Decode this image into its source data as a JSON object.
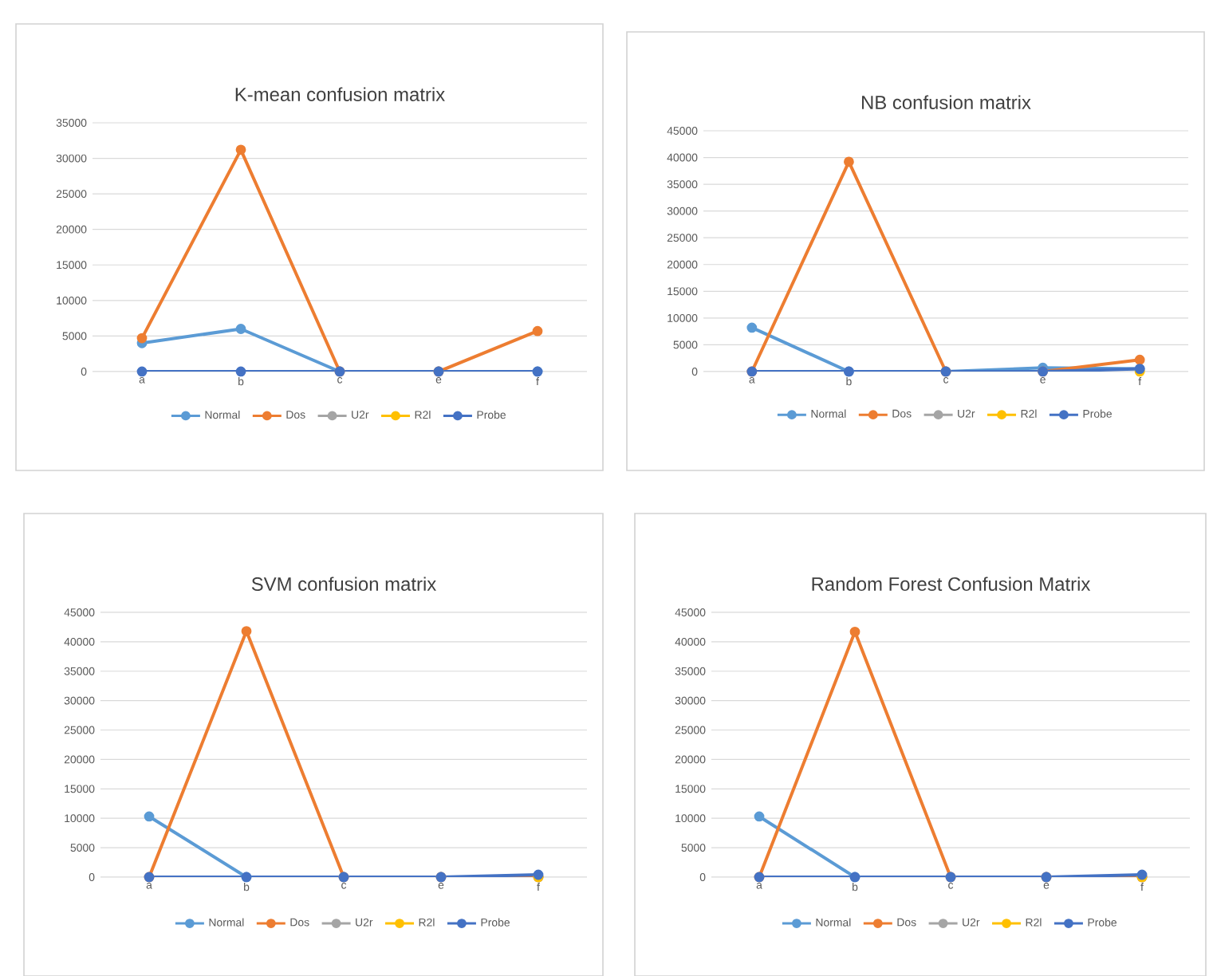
{
  "chart_data": [
    {
      "type": "line",
      "title": "K-mean confusion matrix",
      "categories": [
        "a",
        "b",
        "c",
        "e",
        "f"
      ],
      "ylim": [
        0,
        35000
      ],
      "yticks": [
        0,
        5000,
        10000,
        15000,
        20000,
        25000,
        30000,
        35000
      ],
      "grid": "y",
      "legend": "bottom",
      "marker": "circle",
      "series": [
        {
          "name": "Normal",
          "color": "#5b9bd5",
          "values": [
            4000,
            6000,
            0,
            0,
            0
          ]
        },
        {
          "name": "Dos",
          "color": "#ed7d31",
          "values": [
            4700,
            31200,
            0,
            0,
            5700
          ]
        },
        {
          "name": "U2r",
          "color": "#a5a5a5",
          "values": [
            null,
            null,
            null,
            null,
            null
          ]
        },
        {
          "name": "R2l",
          "color": "#ffc000",
          "values": [
            null,
            null,
            null,
            null,
            null
          ]
        },
        {
          "name": "Probe",
          "color": "#4472c4",
          "values": [
            0,
            0,
            0,
            0,
            0
          ]
        }
      ]
    },
    {
      "type": "line",
      "title": "NB confusion matrix",
      "categories": [
        "a",
        "b",
        "c",
        "e",
        "f"
      ],
      "ylim": [
        0,
        45000
      ],
      "yticks": [
        0,
        5000,
        10000,
        15000,
        20000,
        25000,
        30000,
        35000,
        40000,
        45000
      ],
      "grid": "y",
      "legend": "bottom",
      "marker": "circle",
      "series": [
        {
          "name": "Normal",
          "color": "#5b9bd5",
          "values": [
            8200,
            0,
            0,
            700,
            500
          ]
        },
        {
          "name": "Dos",
          "color": "#ed7d31",
          "values": [
            0,
            39200,
            0,
            0,
            2200
          ]
        },
        {
          "name": "U2r",
          "color": "#a5a5a5",
          "values": [
            null,
            null,
            null,
            null,
            null
          ]
        },
        {
          "name": "R2l",
          "color": "#ffc000",
          "values": [
            null,
            null,
            null,
            null,
            0
          ]
        },
        {
          "name": "Probe",
          "color": "#4472c4",
          "values": [
            0,
            0,
            0,
            0,
            500
          ]
        }
      ]
    },
    {
      "type": "line",
      "title": "SVM confusion matrix",
      "categories": [
        "a",
        "b",
        "c",
        "e",
        "f"
      ],
      "ylim": [
        0,
        45000
      ],
      "yticks": [
        0,
        5000,
        10000,
        15000,
        20000,
        25000,
        30000,
        35000,
        40000,
        45000
      ],
      "grid": "y",
      "legend": "bottom",
      "marker": "circle",
      "series": [
        {
          "name": "Normal",
          "color": "#5b9bd5",
          "values": [
            10300,
            0,
            0,
            0,
            0
          ]
        },
        {
          "name": "Dos",
          "color": "#ed7d31",
          "values": [
            0,
            41800,
            0,
            0,
            0
          ]
        },
        {
          "name": "U2r",
          "color": "#a5a5a5",
          "values": [
            null,
            null,
            null,
            null,
            null
          ]
        },
        {
          "name": "R2l",
          "color": "#ffc000",
          "values": [
            null,
            null,
            null,
            null,
            0
          ]
        },
        {
          "name": "Probe",
          "color": "#4472c4",
          "values": [
            0,
            0,
            0,
            0,
            400
          ]
        }
      ]
    },
    {
      "type": "line",
      "title": "Random Forest Confusion Matrix",
      "categories": [
        "a",
        "b",
        "c",
        "e",
        "f"
      ],
      "ylim": [
        0,
        45000
      ],
      "yticks": [
        0,
        5000,
        10000,
        15000,
        20000,
        25000,
        30000,
        35000,
        40000,
        45000
      ],
      "grid": "y",
      "legend": "bottom",
      "marker": "circle",
      "series": [
        {
          "name": "Normal",
          "color": "#5b9bd5",
          "values": [
            10300,
            0,
            0,
            0,
            0
          ]
        },
        {
          "name": "Dos",
          "color": "#ed7d31",
          "values": [
            0,
            41700,
            0,
            0,
            0
          ]
        },
        {
          "name": "U2r",
          "color": "#a5a5a5",
          "values": [
            null,
            null,
            null,
            null,
            null
          ]
        },
        {
          "name": "R2l",
          "color": "#ffc000",
          "values": [
            null,
            null,
            null,
            null,
            0
          ]
        },
        {
          "name": "Probe",
          "color": "#4472c4",
          "values": [
            0,
            0,
            0,
            0,
            400
          ]
        }
      ]
    }
  ]
}
